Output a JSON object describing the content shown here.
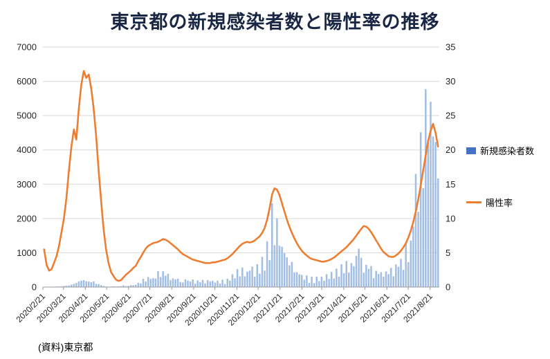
{
  "title": "東京都の新規感染者数と陽性率の推移",
  "source_note": "(資料)東京都",
  "colors": {
    "bar": "#A3BEE3",
    "bar_legend": "#4472C4",
    "line": "#ED7D31",
    "grid": "#D9D9D9",
    "axis_text": "#262626",
    "title": "#1A2744"
  },
  "chart_data": {
    "type": "bar",
    "title": "東京都の新規感染者数と陽性率の推移",
    "grid": "horizontal",
    "legend_position": "right",
    "start_date": "2020/2/21",
    "sample_interval_days": 3.5,
    "left_axis": {
      "label": "新規感染者数",
      "min": 0,
      "max": 7000,
      "step": 1000
    },
    "right_axis": {
      "label": "陽性率",
      "min": 0,
      "max": 35,
      "step": 5
    },
    "x_tick_labels": [
      "2020/2/21",
      "2020/3/21",
      "2020/4/21",
      "2020/5/21",
      "2020/6/21",
      "2020/7/21",
      "2020/8/21",
      "2020/9/21",
      "2020/10/21",
      "2020/11/21",
      "2020/12/21",
      "2021/1/21",
      "2021/2/21",
      "2021/3/21",
      "2021/4/21",
      "2021/5/21",
      "2021/6/21",
      "2021/7/21",
      "2021/8/21"
    ],
    "series": [
      {
        "name": "新規感染者数",
        "type": "bar",
        "axis": "left",
        "values": [
          5,
          8,
          6,
          10,
          12,
          15,
          18,
          22,
          30,
          41,
          47,
          68,
          92,
          118,
          166,
          186,
          201,
          170,
          161,
          141,
          165,
          93,
          88,
          57,
          30,
          14,
          11,
          15,
          22,
          13,
          20,
          25,
          47,
          27,
          35,
          55,
          54,
          67,
          124,
          106,
          243,
          165,
          293,
          237,
          260,
          250,
          463,
          292,
          462,
          331,
          389,
          207,
          256,
          226,
          247,
          148,
          136,
          226,
          187,
          163,
          220,
          98,
          195,
          144,
          207,
          108,
          203,
          166,
          184,
          132,
          186,
          102,
          215,
          87,
          242,
          189,
          374,
          255,
          522,
          314,
          570,
          311,
          449,
          480,
          595,
          305,
          664,
          392,
          884,
          481,
          1337,
          783,
          2447,
          1219,
          2001,
          1204,
          1175,
          986,
          868,
          633,
          734,
          429,
          434,
          371,
          353,
          213,
          340,
          121,
          301,
          116,
          304,
          175,
          303,
          187,
          376,
          234,
          440,
          249,
          537,
          306,
          667,
          405,
          759,
          425,
          698,
          609,
          907,
          1121,
          854,
          419,
          649,
          535,
          614,
          260,
          472,
          384,
          435,
          304,
          453,
          376,
          562,
          317,
          660,
          593,
          822,
          502,
          1271,
          727,
          1359,
          1763,
          3300,
          2195,
          4515,
          2884,
          5773,
          4295,
          5405,
          4392,
          4227,
          3168
        ]
      },
      {
        "name": "陽性率",
        "type": "line",
        "axis": "right",
        "values": [
          5.5,
          3.2,
          2.4,
          2.6,
          3.5,
          4.5,
          6,
          8,
          10,
          13,
          17,
          20.5,
          23,
          21.5,
          26,
          29.5,
          31.5,
          30.5,
          31,
          29,
          26,
          22,
          17,
          12.5,
          8.5,
          5.5,
          3.5,
          2.2,
          1.6,
          1.1,
          0.9,
          1.0,
          1.4,
          1.8,
          2.1,
          2.4,
          2.8,
          3.1,
          3.8,
          4.4,
          5.0,
          5.6,
          6.0,
          6.2,
          6.4,
          6.5,
          6.6,
          6.8,
          7.0,
          6.9,
          6.7,
          6.4,
          6.1,
          5.8,
          5.5,
          5.1,
          4.8,
          4.6,
          4.4,
          4.2,
          4.0,
          3.9,
          3.8,
          3.7,
          3.6,
          3.5,
          3.5,
          3.5,
          3.6,
          3.6,
          3.7,
          3.8,
          3.9,
          4.0,
          4.2,
          4.5,
          4.8,
          5.2,
          5.6,
          6.0,
          6.3,
          6.5,
          6.6,
          6.5,
          6.6,
          6.8,
          7.1,
          7.4,
          7.9,
          8.6,
          9.8,
          11.5,
          13.5,
          14.4,
          14.2,
          13.4,
          12.2,
          11.0,
          9.8,
          8.8,
          7.9,
          7.1,
          6.4,
          5.8,
          5.3,
          4.9,
          4.6,
          4.3,
          4.1,
          4.0,
          3.9,
          3.8,
          3.7,
          3.7,
          3.8,
          3.9,
          4.1,
          4.3,
          4.6,
          4.9,
          5.2,
          5.5,
          5.8,
          6.2,
          6.6,
          7.0,
          7.5,
          8.0,
          8.5,
          8.9,
          8.8,
          8.5,
          8.0,
          7.4,
          6.8,
          6.2,
          5.6,
          5.1,
          4.8,
          4.5,
          4.4,
          4.4,
          4.6,
          4.9,
          5.3,
          5.8,
          6.4,
          7.2,
          8.2,
          9.5,
          11.0,
          12.8,
          14.8,
          17.0,
          19.2,
          21.3,
          22.8,
          23.8,
          22.5,
          20.5
        ]
      }
    ]
  }
}
